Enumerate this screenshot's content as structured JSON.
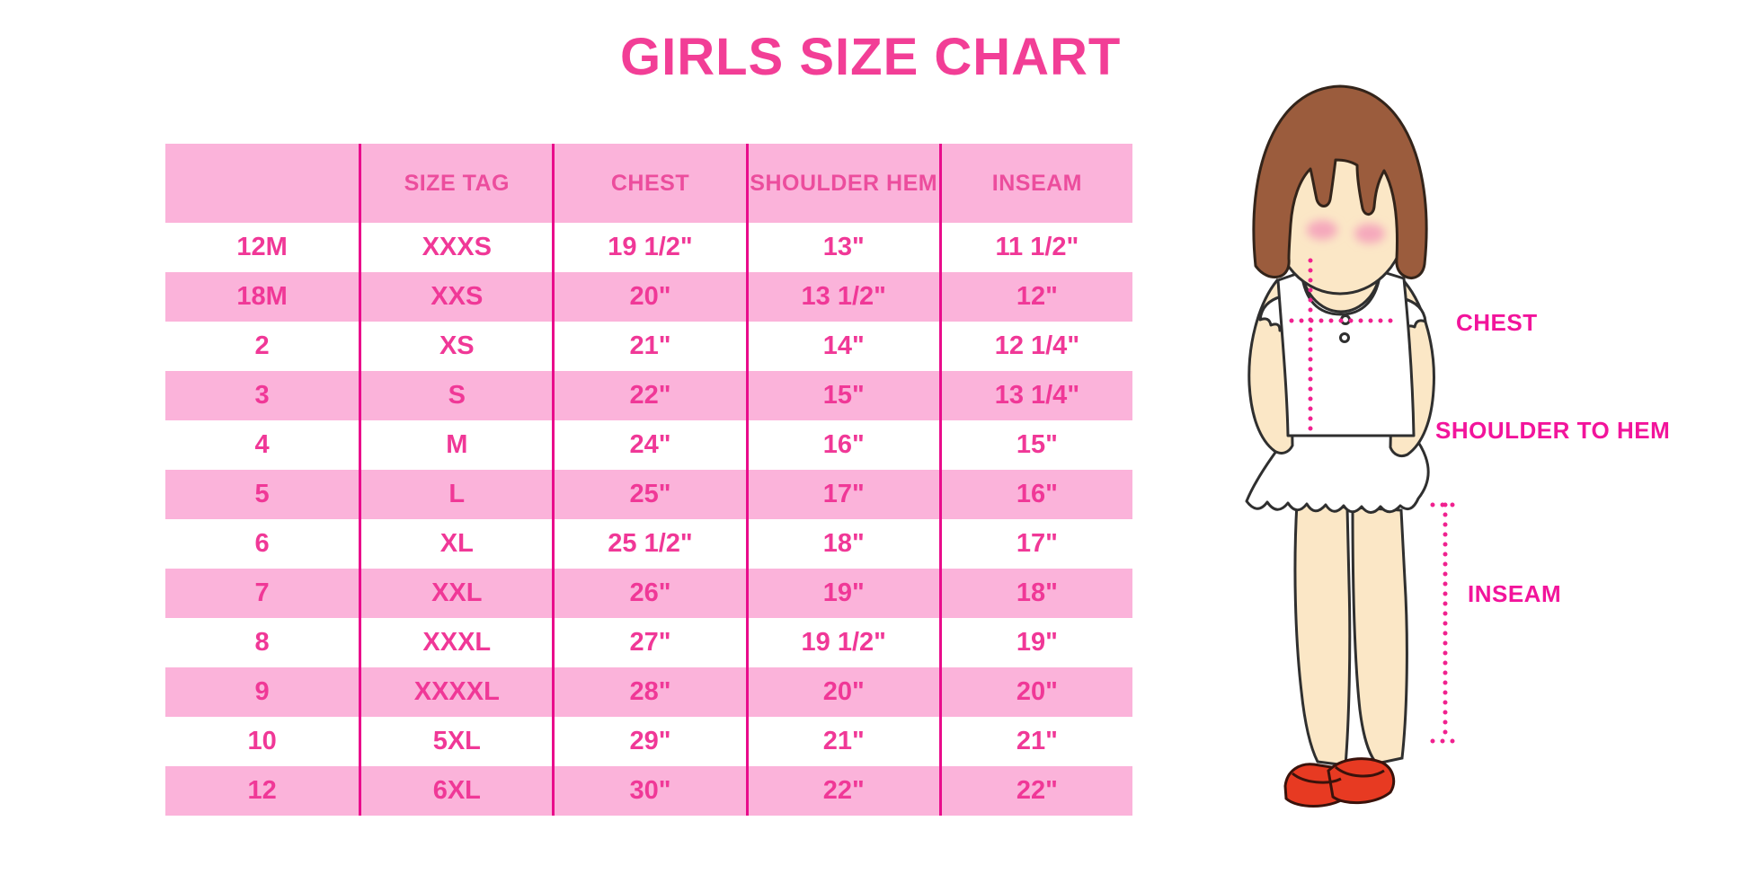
{
  "page_title": "GIRLS SIZE CHART",
  "chart_data": {
    "type": "table",
    "title": "GIRLS SIZE CHART",
    "columns": [
      "",
      "SIZE TAG",
      "CHEST",
      "SHOULDER HEM",
      "INSEAM"
    ],
    "rows": [
      [
        "12M",
        "XXXS",
        "19 1/2\"",
        "13\"",
        "11 1/2\""
      ],
      [
        "18M",
        "XXS",
        "20\"",
        "13 1/2\"",
        "12\""
      ],
      [
        "2",
        "XS",
        "21\"",
        "14\"",
        "12 1/4\""
      ],
      [
        "3",
        "S",
        "22\"",
        "15\"",
        "13 1/4\""
      ],
      [
        "4",
        "M",
        "24\"",
        "16\"",
        "15\""
      ],
      [
        "5",
        "L",
        "25\"",
        "17\"",
        "16\""
      ],
      [
        "6",
        "XL",
        "25 1/2\"",
        "18\"",
        "17\""
      ],
      [
        "7",
        "XXL",
        "26\"",
        "19\"",
        "18\""
      ],
      [
        "8",
        "XXXL",
        "27\"",
        "19 1/2\"",
        "19\""
      ],
      [
        "9",
        "XXXXL",
        "28\"",
        "20\"",
        "20\""
      ],
      [
        "10",
        "5XL",
        "29\"",
        "21\"",
        "21\""
      ],
      [
        "12",
        "6XL",
        "30\"",
        "22\"",
        "22\""
      ]
    ],
    "row_stripe_pattern": "first data row white, then alternating pink",
    "legend_position": "none",
    "grid": "vertical magenta dividers only"
  },
  "diagram": {
    "chest_label": "CHEST",
    "shoulder_to_hem_label": "SHOULDER TO HEM",
    "inseam_label": "INSEAM"
  },
  "colors": {
    "title_pink": "#F23E96",
    "row_pink": "#FBB3DA",
    "divider_magenta": "#E90C8B",
    "cell_text_pink": "#F03897",
    "header_text_pink": "#EC4D9D",
    "measure_dot_pink": "#F0218F",
    "label_magenta": "#F2149B",
    "hair_brown": "#9B5C3D",
    "skin": "#FBE7C6",
    "shoe_red": "#E73A22"
  }
}
